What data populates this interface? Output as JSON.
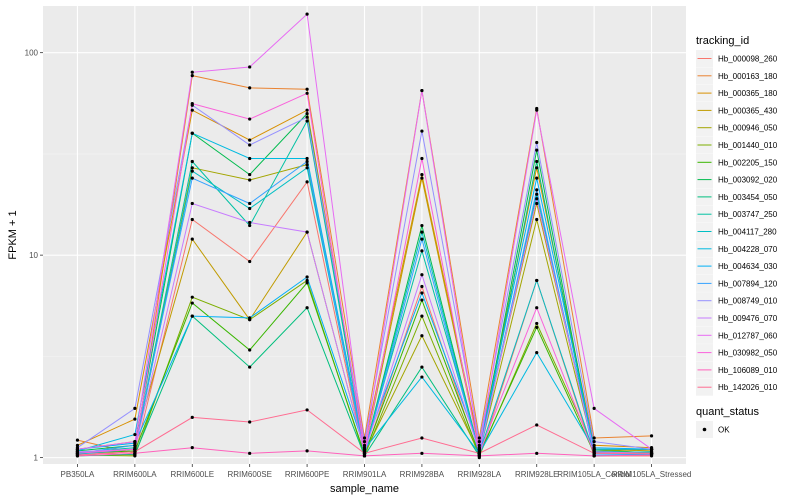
{
  "chart_data": {
    "type": "line",
    "xlabel": "sample_name",
    "ylabel": "FPKM + 1",
    "y_scale": "log10",
    "ylim": [
      0.93,
      170
    ],
    "y_ticks": [
      {
        "value": 1,
        "label": "1"
      },
      {
        "value": 10,
        "label": "10"
      },
      {
        "value": 100,
        "label": "100"
      }
    ],
    "categories": [
      "PB350LA",
      "RRIM600LA",
      "RRIM600LE",
      "RRIM600SE",
      "RRIM600PE",
      "RRIM901LA",
      "RRIM928BA",
      "RRIM928LA",
      "RRIM928LE",
      "RRIM105LA_Control",
      "RRIM105LA_Stressed"
    ],
    "grid": true,
    "background": "#ebebeb",
    "series": [
      {
        "name": "Hb_000098_260",
        "color": "#F8766D",
        "values": [
          1.07,
          1.03,
          15.0,
          9.3,
          23.0,
          1.02,
          7.0,
          1.0,
          7.5,
          1.02,
          1.02
        ]
      },
      {
        "name": "Hb_000163_180",
        "color": "#EA8331",
        "values": [
          1.22,
          1.05,
          77.0,
          67.0,
          66.0,
          1.25,
          65.0,
          1.25,
          53.0,
          1.25,
          1.28
        ]
      },
      {
        "name": "Hb_000365_180",
        "color": "#D89000",
        "values": [
          1.15,
          1.55,
          52.0,
          37.0,
          52.0,
          1.15,
          25.0,
          1.15,
          27.0,
          1.15,
          1.12
        ]
      },
      {
        "name": "Hb_000365_430",
        "color": "#C09B00",
        "values": [
          1.1,
          1.2,
          12.0,
          4.8,
          13.0,
          1.07,
          24.0,
          1.1,
          18.0,
          1.1,
          1.08
        ]
      },
      {
        "name": "Hb_000946_050",
        "color": "#A3A500",
        "values": [
          1.05,
          1.1,
          27.0,
          23.5,
          28.0,
          1.05,
          4.0,
          1.05,
          15.0,
          1.08,
          1.1
        ]
      },
      {
        "name": "Hb_001440_010",
        "color": "#7CAE00",
        "values": [
          1.03,
          1.02,
          6.2,
          4.8,
          7.5,
          1.02,
          5.0,
          1.02,
          4.6,
          1.1,
          1.05
        ]
      },
      {
        "name": "Hb_002205_150",
        "color": "#39B600",
        "values": [
          1.05,
          1.08,
          5.8,
          3.4,
          7.3,
          1.04,
          6.0,
          1.04,
          4.4,
          1.05,
          1.05
        ]
      },
      {
        "name": "Hb_003092_020",
        "color": "#00BB4E",
        "values": [
          1.08,
          1.15,
          40.0,
          25.0,
          50.0,
          1.06,
          14.0,
          1.06,
          33.0,
          1.06,
          1.05
        ]
      },
      {
        "name": "Hb_003454_050",
        "color": "#00BF7D",
        "values": [
          1.02,
          1.04,
          5.0,
          2.8,
          5.5,
          1.02,
          2.8,
          1.02,
          29.0,
          1.02,
          1.04
        ]
      },
      {
        "name": "Hb_003747_250",
        "color": "#00C1A3",
        "values": [
          1.06,
          1.12,
          29.0,
          14.0,
          46.0,
          1.08,
          10.5,
          1.08,
          20.0,
          1.08,
          1.06
        ]
      },
      {
        "name": "Hb_004117_280",
        "color": "#00BFC4",
        "values": [
          1.04,
          1.1,
          26.0,
          17.0,
          27.0,
          1.05,
          13.0,
          1.05,
          7.5,
          1.05,
          1.07
        ]
      },
      {
        "name": "Hb_004228_070",
        "color": "#00BAE0",
        "values": [
          1.08,
          1.3,
          40.0,
          30.0,
          30.0,
          1.1,
          2.5,
          1.05,
          3.3,
          1.1,
          1.1
        ]
      },
      {
        "name": "Hb_004634_030",
        "color": "#00B0F6",
        "values": [
          1.1,
          1.18,
          5.0,
          4.9,
          7.8,
          1.12,
          6.5,
          1.12,
          24.0,
          1.12,
          1.1
        ]
      },
      {
        "name": "Hb_007894_120",
        "color": "#35A2FF",
        "values": [
          1.05,
          1.15,
          24.0,
          18.0,
          29.0,
          1.03,
          12.0,
          1.03,
          21.0,
          1.03,
          1.04
        ]
      },
      {
        "name": "Hb_008749_010",
        "color": "#9590FF",
        "values": [
          1.12,
          1.75,
          55.0,
          35.0,
          48.0,
          1.2,
          41.0,
          1.2,
          36.0,
          1.2,
          1.1
        ]
      },
      {
        "name": "Hb_009476_070",
        "color": "#C77CFF",
        "values": [
          1.07,
          1.1,
          18.0,
          14.5,
          13.0,
          1.07,
          8.0,
          1.07,
          19.0,
          1.07,
          1.05
        ]
      },
      {
        "name": "Hb_012787_060",
        "color": "#E76BF3",
        "values": [
          1.1,
          1.2,
          80.0,
          85.0,
          155.0,
          1.1,
          65.0,
          1.1,
          52.0,
          1.75,
          1.1
        ]
      },
      {
        "name": "Hb_030982_050",
        "color": "#FA62DB",
        "values": [
          1.05,
          1.1,
          56.0,
          47.0,
          63.0,
          1.05,
          30.0,
          1.05,
          5.5,
          1.05,
          1.05
        ]
      },
      {
        "name": "Hb_106089_010",
        "color": "#FF62BC",
        "values": [
          1.02,
          1.05,
          1.12,
          1.05,
          1.08,
          1.02,
          1.05,
          1.02,
          1.05,
          1.02,
          1.03
        ]
      },
      {
        "name": "Hb_142026_010",
        "color": "#FF6C91",
        "values": [
          1.03,
          1.07,
          1.58,
          1.5,
          1.72,
          1.05,
          1.25,
          1.05,
          1.45,
          1.05,
          1.05
        ]
      }
    ],
    "legend": {
      "title": "tracking_id",
      "placement": "right",
      "shape_title": "quant_status",
      "shape_label": "OK"
    }
  }
}
